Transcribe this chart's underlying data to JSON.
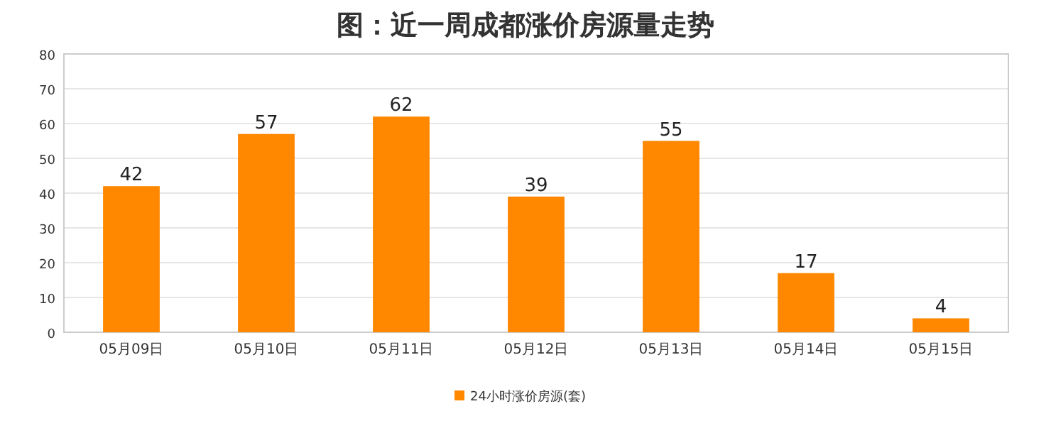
{
  "chart_data": {
    "type": "bar",
    "title": "图：近一周成都涨价房源量走势",
    "categories": [
      "05月09日",
      "05月10日",
      "05月11日",
      "05月12日",
      "05月13日",
      "05月14日",
      "05月15日"
    ],
    "series": [
      {
        "name": "24小时涨价房源(套)",
        "color": "#ff8800",
        "values": [
          42,
          57,
          62,
          39,
          55,
          17,
          4
        ]
      }
    ],
    "ylim": [
      0,
      80
    ],
    "yticks": [
      0,
      10,
      20,
      30,
      40,
      50,
      60,
      70,
      80
    ],
    "grid": "y",
    "legend": "bottom",
    "data_labels": true
  }
}
